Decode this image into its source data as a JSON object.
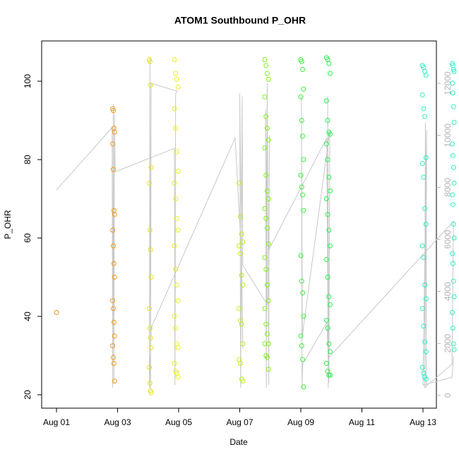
{
  "chart_data": {
    "type": "scatter",
    "title": "ATOM1 Southbound P_OHR",
    "x_label": "Date",
    "y_label": "P_OHR",
    "xlim": [
      -0.486,
      12.44
    ],
    "ylim": [
      16.58,
      110.27
    ],
    "y2lim": [
      -489,
      13629
    ],
    "xticks": [
      {
        "value": 0,
        "label": "Aug 01"
      },
      {
        "value": 2,
        "label": "Aug 03"
      },
      {
        "value": 4,
        "label": "Aug 05"
      },
      {
        "value": 6,
        "label": "Aug 07"
      },
      {
        "value": 8,
        "label": "Aug 09"
      },
      {
        "value": 10,
        "label": "Aug 11"
      },
      {
        "value": 12,
        "label": "Aug 13"
      }
    ],
    "yticks": [
      20,
      40,
      60,
      80,
      100
    ],
    "y2ticks": [
      0,
      2000,
      4000,
      6000,
      8000,
      10000,
      12000
    ],
    "series": [
      {
        "color": "#e8901a",
        "x": [
          0
        ],
        "values": [
          41
        ]
      },
      {
        "color": "#f09a1c",
        "x": [
          1.84,
          1.86,
          1.88,
          1.9,
          1.84,
          1.86,
          1.88,
          1.9,
          1.84,
          1.86,
          1.88,
          1.9,
          1.84,
          1.86,
          1.88,
          1.9,
          1.84,
          1.86,
          1.88,
          1.9
        ],
        "values": [
          93,
          92.5,
          88,
          87,
          84,
          77.5,
          67,
          66,
          62,
          58,
          53.5,
          50,
          44,
          42,
          38.5,
          35,
          32.5,
          29.5,
          28,
          23.5
        ]
      },
      {
        "color": "#e8e41c",
        "x": [
          3.04,
          3.06,
          3.08,
          3.1,
          3.04,
          3.06,
          3.08,
          3.1,
          3.04,
          3.06,
          3.08,
          3.1,
          3.04,
          3.06,
          3.08,
          3.1
        ],
        "values": [
          105.5,
          105,
          99,
          78,
          74,
          62,
          57,
          50,
          42,
          37,
          34.5,
          32,
          27,
          23,
          21,
          20.5
        ]
      },
      {
        "color": "#e8f01c",
        "x": [
          3.86,
          3.9,
          3.94,
          3.98,
          3.86,
          3.9,
          3.94,
          3.98,
          3.86,
          3.9,
          3.94,
          3.98,
          3.86,
          3.9,
          3.94,
          3.98,
          3.86,
          3.9,
          3.94,
          3.98,
          3.86,
          3.9,
          3.94,
          3.98
        ],
        "values": [
          105.5,
          102,
          100.5,
          98.5,
          93,
          88,
          82,
          77,
          74,
          70,
          65,
          62,
          58,
          52,
          48,
          44,
          40,
          37,
          33,
          32,
          28,
          26,
          25.5,
          24.5
        ]
      },
      {
        "color": "#b8f01c",
        "x": [
          5.98,
          6.02,
          6.06,
          6.1,
          5.98,
          6.02,
          6.06,
          6.1,
          5.98,
          6.02,
          6.06,
          6.1,
          5.98,
          6.02,
          6.06,
          6.1
        ],
        "values": [
          74,
          65.5,
          61,
          59,
          58,
          56,
          50.5,
          48,
          42,
          39,
          38,
          33,
          29,
          28,
          24,
          23.5
        ]
      },
      {
        "color": "#80f01c",
        "x": [
          6.82,
          6.86,
          6.9,
          6.94,
          6.82,
          6.86,
          6.9,
          6.94,
          6.82,
          6.86,
          6.9,
          6.94,
          6.82,
          6.86,
          6.9,
          6.94,
          6.82,
          6.86,
          6.9,
          6.94,
          6.82,
          6.86,
          6.9,
          6.94,
          6.82,
          6.86,
          6.9,
          6.94
        ],
        "values": [
          105.5,
          104,
          102,
          100.5,
          96,
          91,
          88,
          85,
          83,
          76,
          72,
          70,
          67.5,
          65,
          62.5,
          58.5,
          55,
          52,
          48,
          44,
          42,
          38,
          35.5,
          33,
          33,
          30,
          29.5,
          26.5
        ]
      },
      {
        "color": "#3cf03c",
        "x": [
          8.0,
          8.03,
          8.06,
          8.09,
          8.0,
          8.03,
          8.06,
          8.09,
          8.0,
          8.03,
          8.06,
          8.09,
          8.0,
          8.03,
          8.06,
          8.09,
          8.0,
          8.03,
          8.06,
          8.09
        ],
        "values": [
          105.5,
          105,
          103,
          98,
          96,
          90,
          86,
          80,
          76,
          73,
          71,
          67,
          55.5,
          49,
          46,
          40,
          35,
          32.5,
          29,
          22
        ]
      },
      {
        "color": "#28f050",
        "x": [
          8.84,
          8.88,
          8.92,
          8.96,
          8.84,
          8.88,
          8.92,
          8.96,
          8.84,
          8.88,
          8.92,
          8.96,
          8.84,
          8.88,
          8.92,
          8.96,
          8.84,
          8.88,
          8.92,
          8.96,
          8.84,
          8.88,
          8.92,
          8.96,
          8.84,
          8.88,
          8.92,
          8.96
        ],
        "values": [
          106,
          105.5,
          104.5,
          102,
          95,
          90,
          87,
          86.5,
          84,
          80,
          75.5,
          72,
          70,
          66,
          62,
          58,
          54.5,
          50,
          45,
          43,
          39,
          37,
          33,
          31,
          28,
          26,
          25,
          25
        ]
      },
      {
        "color": "#28f0c0",
        "x": [
          11.98,
          12.02,
          12.06,
          12.1,
          11.98,
          12.02,
          12.06,
          12.1,
          11.98,
          12.02,
          12.06,
          12.1,
          11.98,
          12.02,
          12.06,
          12.1,
          11.98,
          12.02,
          12.06,
          12.1,
          11.98,
          12.02,
          12.06,
          12.1
        ],
        "values": [
          104,
          103.5,
          102.5,
          101.5,
          96.5,
          93,
          91,
          80.5,
          79,
          75.5,
          67.5,
          63.5,
          58,
          55,
          48,
          44.5,
          42,
          37.5,
          33.5,
          31,
          27,
          25.5,
          24.5,
          24
        ]
      },
      {
        "color": "#28f0c8",
        "x": [
          12.96,
          12.98,
          13.0,
          13.02,
          12.96,
          12.98,
          13.0,
          13.02,
          12.96,
          12.98,
          13.0,
          13.02,
          12.96,
          12.98,
          13.0,
          13.02,
          12.96,
          12.98,
          13.0,
          13.02,
          12.96,
          12.98,
          13.0,
          13.02
        ],
        "values": [
          104.5,
          104,
          103,
          102.5,
          99.5,
          97,
          93.5,
          89.5,
          84,
          81,
          78,
          74,
          71,
          68.5,
          63.5,
          60,
          56,
          53.5,
          49,
          45,
          41,
          37,
          33,
          31.5
        ]
      }
    ],
    "line": {
      "type": "line",
      "axis": "y2",
      "color": "#c8c8c8",
      "x": [
        0,
        1.82,
        1.84,
        1.86,
        1.88,
        1.9,
        1.92,
        3.86,
        3.88,
        3.9,
        3.95,
        3.1,
        3.08,
        3.06,
        3.04,
        3.1,
        5.85,
        6.05,
        6.1,
        6.0,
        6.03,
        6.08,
        6.1,
        6.9,
        6.85,
        6.87,
        6.9,
        6.95,
        6.97,
        6.95,
        8.85,
        8.9,
        8.88,
        8.92,
        8.95,
        8.05,
        8.02,
        8.04,
        8.06,
        8.85,
        8.9,
        8.95,
        13.0,
        12.95,
        12.05,
        12.08,
        12.1,
        12.12,
        12.0,
        12.95,
        13.0
      ],
      "values": [
        7900,
        10300,
        300,
        11200,
        500,
        10800,
        8600,
        9500,
        400,
        11600,
        11700,
        12000,
        200,
        13000,
        300,
        2600,
        9900,
        5600,
        1800,
        11600,
        300,
        11500,
        5000,
        3500,
        11000,
        300,
        12000,
        400,
        10000,
        5600,
        9900,
        300,
        11500,
        500,
        10200,
        2300,
        11500,
        300,
        1200,
        2800,
        1400,
        1500,
        6700,
        1200,
        300,
        10500,
        300,
        10200,
        400,
        700,
        1500
      ]
    }
  }
}
